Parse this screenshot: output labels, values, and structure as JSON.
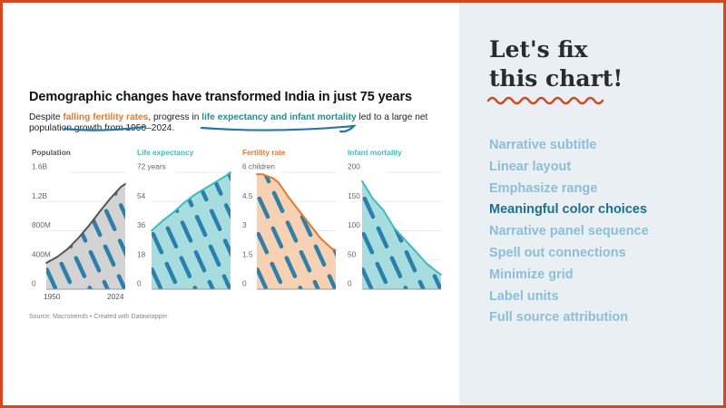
{
  "chart_data": {
    "type": "area",
    "title": "Demographic changes have transformed India in just 75 years",
    "subtitle": {
      "prefix": "Despite ",
      "highlight1": "falling fertility rates",
      "middle": ", progress in ",
      "highlight2": "life expectancy and infant mortality",
      "suffix": " led to a large net population growth from 1950–2024."
    },
    "source": "Source: Macrotrends • Created with Datawrapper",
    "x_range": [
      1950,
      2024
    ],
    "x_tick_labels": [
      "1950",
      "2024"
    ],
    "panels": [
      {
        "name": "Population",
        "color": "#555555",
        "fill": "#d3d3d3",
        "ylim": [
          0,
          1.6
        ],
        "y_ticks": [
          "1.6B",
          "1.2B",
          "800M",
          "400M",
          "0"
        ],
        "x": [
          1950,
          1960,
          1970,
          1980,
          1990,
          2000,
          2010,
          2020,
          2024
        ],
        "values": [
          0.36,
          0.44,
          0.55,
          0.7,
          0.87,
          1.06,
          1.24,
          1.4,
          1.44
        ]
      },
      {
        "name": "Life expectancy",
        "color": "#3dbcbc",
        "fill": "#a8dde0",
        "ylim": [
          0,
          72
        ],
        "y_ticks": [
          "72 years",
          "54",
          "36",
          "18",
          "0"
        ],
        "x": [
          1950,
          1960,
          1970,
          1980,
          1990,
          2000,
          2010,
          2020,
          2024
        ],
        "values": [
          36,
          42,
          47,
          53,
          58,
          62,
          66,
          70,
          72
        ]
      },
      {
        "name": "Fertility rate",
        "color": "#e07a2c",
        "fill": "#f7d1b3",
        "ylim": [
          0,
          6
        ],
        "y_ticks": [
          "6 children",
          "4.5",
          "3",
          "1.5",
          "0"
        ],
        "x": [
          1950,
          1955,
          1960,
          1965,
          1970,
          1980,
          1990,
          2000,
          2010,
          2020,
          2024
        ],
        "values": [
          5.9,
          5.9,
          5.8,
          5.7,
          5.5,
          4.7,
          4.0,
          3.3,
          2.6,
          2.1,
          2.0
        ]
      },
      {
        "name": "Infant mortality",
        "color": "#3dbcbc",
        "fill": "#a8dde0",
        "ylim": [
          0,
          200
        ],
        "y_ticks": [
          "200",
          "150",
          "100",
          "50",
          "0"
        ],
        "x": [
          1950,
          1955,
          1960,
          1970,
          1980,
          1990,
          2000,
          2010,
          2020,
          2024
        ],
        "values": [
          185,
          170,
          155,
          135,
          105,
          85,
          65,
          45,
          30,
          25
        ]
      }
    ]
  },
  "heading": {
    "line1": "Let's fix",
    "line2": "this chart!"
  },
  "checklist": [
    {
      "label": "Narrative subtitle",
      "active": false
    },
    {
      "label": "Linear layout",
      "active": false
    },
    {
      "label": "Emphasize range",
      "active": false
    },
    {
      "label": "Meaningful color choices",
      "active": true
    },
    {
      "label": "Narrative panel sequence",
      "active": false
    },
    {
      "label": "Spell out connections",
      "active": false
    },
    {
      "label": "Minimize grid",
      "active": false
    },
    {
      "label": "Label units",
      "active": false
    },
    {
      "label": "Full source attribution",
      "active": false
    }
  ],
  "colors": {
    "border": "#d8461e",
    "panel_bg": "#e9eff2",
    "marker": "#1f78a8",
    "active_item": "#1d6f8f",
    "inactive_item": "#8bbfd8"
  }
}
